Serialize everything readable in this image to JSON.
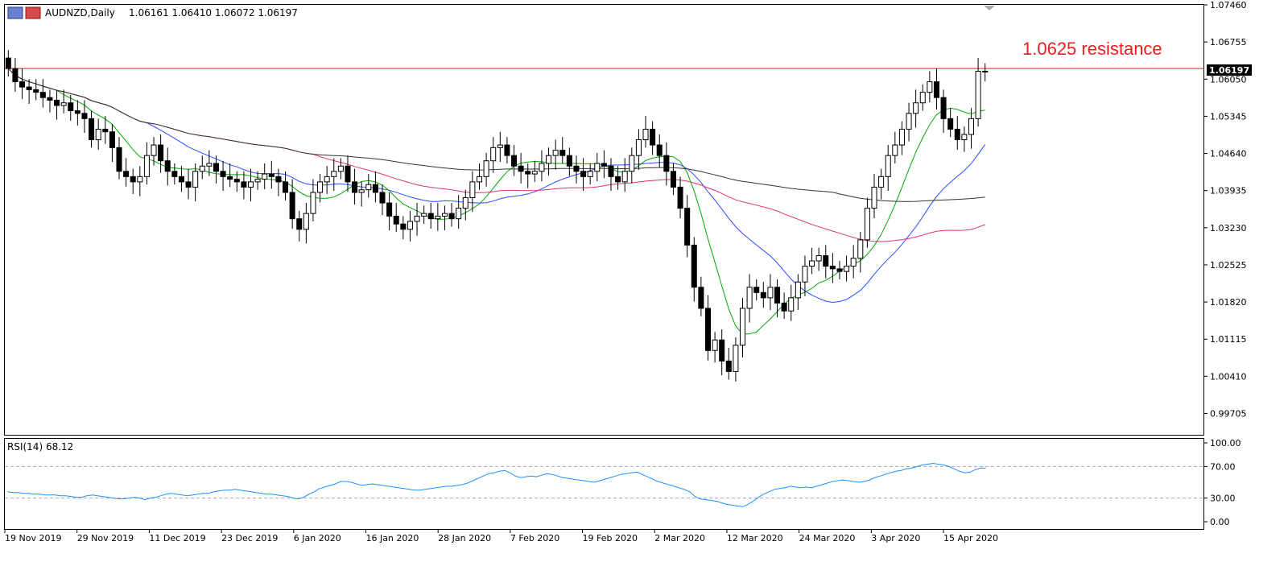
{
  "header": {
    "symbol": "AUDNZD,Daily",
    "ohlc": "1.06161 1.06410 1.06072 1.06197"
  },
  "annotation": {
    "text": "1.0625 resistance",
    "price": 1.0625,
    "color": "#ee1c1c"
  },
  "price_label": "1.06197",
  "rsi_label": "RSI(14) 68.12",
  "colors": {
    "ma_fast": "#00aa00",
    "ma_mid": "#2b4cff",
    "ma_slow": "#e0336e",
    "ma_long": "#333333",
    "rsi": "#1e90ff",
    "resistance": "#ee1c1c"
  },
  "chart_data": [
    {
      "type": "candlestick",
      "title": "AUDNZD,Daily",
      "y_ticks": [
        "1.07460",
        "1.06755",
        "1.06050",
        "1.05345",
        "1.04640",
        "1.03935",
        "1.03230",
        "1.02525",
        "1.01820",
        "1.01115",
        "1.00410",
        "0.99705"
      ],
      "ylim": [
        0.993,
        1.0746
      ],
      "x_ticks": [
        "19 Nov 2019",
        "29 Nov 2019",
        "11 Dec 2019",
        "23 Dec 2019",
        "6 Jan 2020",
        "16 Jan 2020",
        "28 Jan 2020",
        "7 Feb 2020",
        "19 Feb 2020",
        "2 Mar 2020",
        "12 Mar 2020",
        "24 Mar 2020",
        "3 Apr 2020",
        "15 Apr 2020"
      ],
      "close": [
        1.0625,
        1.06,
        1.059,
        1.0585,
        1.058,
        1.057,
        1.0565,
        1.0555,
        1.056,
        1.0545,
        1.054,
        1.053,
        1.049,
        1.051,
        1.0505,
        1.0475,
        1.043,
        1.042,
        1.041,
        1.042,
        1.046,
        1.048,
        1.045,
        1.043,
        1.042,
        1.041,
        1.04,
        1.043,
        1.044,
        1.0445,
        1.043,
        1.042,
        1.0415,
        1.041,
        1.04,
        1.041,
        1.0415,
        1.0425,
        1.042,
        1.041,
        1.039,
        1.034,
        1.032,
        1.035,
        1.039,
        1.041,
        1.042,
        1.043,
        1.044,
        1.041,
        1.039,
        1.0395,
        1.0405,
        1.039,
        1.037,
        1.0345,
        1.033,
        1.032,
        1.0335,
        1.0345,
        1.035,
        1.034,
        1.0345,
        1.035,
        1.034,
        1.036,
        1.038,
        1.041,
        1.042,
        1.045,
        1.0475,
        1.048,
        1.046,
        1.044,
        1.043,
        1.0425,
        1.043,
        1.0445,
        1.046,
        1.047,
        1.046,
        1.044,
        1.043,
        1.042,
        1.043,
        1.0445,
        1.044,
        1.042,
        1.041,
        1.043,
        1.046,
        1.049,
        1.051,
        1.048,
        1.046,
        1.043,
        1.04,
        1.036,
        1.029,
        1.021,
        1.017,
        1.009,
        1.011,
        1.007,
        1.005,
        1.01,
        1.017,
        1.021,
        1.02,
        1.019,
        1.021,
        1.018,
        1.0165,
        1.019,
        1.022,
        1.025,
        1.026,
        1.027,
        1.025,
        1.0245,
        1.024,
        1.025,
        1.0265,
        1.03,
        1.036,
        1.04,
        1.042,
        1.046,
        1.048,
        1.051,
        1.054,
        1.056,
        1.058,
        1.06,
        1.057,
        1.053,
        1.051,
        1.049,
        1.05,
        1.053,
        1.062,
        1.06197
      ],
      "series": [
        {
          "name": "ma_fast"
        },
        {
          "name": "ma_mid"
        },
        {
          "name": "ma_slow"
        },
        {
          "name": "ma_long"
        }
      ]
    },
    {
      "type": "line",
      "title": "RSI(14) 68.12",
      "y_ticks": [
        "100.00",
        "70.00",
        "30.00",
        "0.00"
      ],
      "ylim": [
        0,
        100
      ],
      "levels": [
        70,
        30
      ],
      "values": [
        38,
        37,
        37,
        36,
        36,
        35,
        35,
        34,
        34,
        34,
        33,
        33,
        32,
        31,
        31,
        33,
        34,
        33,
        32,
        31,
        30,
        29,
        29,
        30,
        31,
        30,
        28,
        30,
        31,
        33,
        35,
        36,
        35,
        34,
        33,
        34,
        35,
        36,
        36,
        38,
        39,
        40,
        40,
        41,
        40,
        39,
        38,
        37,
        36,
        35,
        35,
        34,
        33,
        32,
        30,
        29,
        31,
        35,
        38,
        42,
        44,
        46,
        48,
        51,
        51,
        50,
        48,
        46,
        47,
        48,
        47,
        46,
        45,
        44,
        43,
        42,
        41,
        40,
        40,
        41,
        42,
        43,
        44,
        45,
        45,
        46,
        47,
        49,
        52,
        55,
        58,
        61,
        62,
        64,
        65,
        62,
        58,
        56,
        57,
        58,
        57,
        59,
        61,
        60,
        58,
        56,
        55,
        54,
        53,
        52,
        51,
        50,
        52,
        54,
        56,
        58,
        60,
        61,
        62,
        63,
        60,
        57,
        54,
        51,
        49,
        47,
        45,
        43,
        41,
        38,
        32,
        29,
        28,
        27,
        26,
        24,
        22,
        21,
        20,
        19,
        22,
        26,
        31,
        35,
        38,
        41,
        42,
        43,
        45,
        44,
        43,
        44,
        43,
        45,
        47,
        49,
        51,
        52,
        53,
        52,
        51,
        50,
        51,
        53,
        56,
        58,
        60,
        62,
        64,
        65,
        67,
        68,
        70,
        72,
        73,
        74,
        73,
        72,
        70,
        67,
        64,
        62,
        63,
        66,
        68,
        68.12
      ]
    }
  ]
}
